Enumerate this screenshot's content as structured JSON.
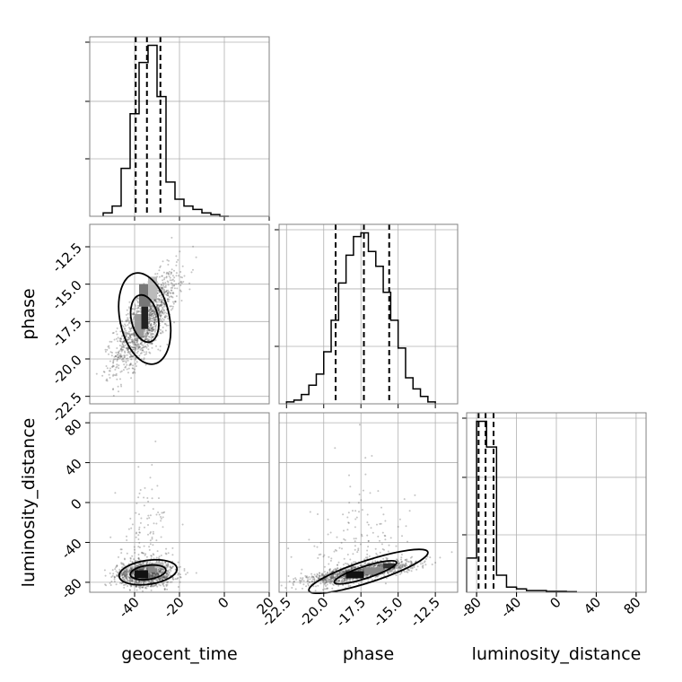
{
  "chart_data": {
    "type": "corner",
    "parameters": [
      {
        "name": "geocent_time",
        "label": "geocent_time",
        "range": [
          -60,
          20
        ],
        "ticks": [
          "-40",
          "-20",
          "0",
          "20"
        ],
        "tick_values": [
          -40,
          -20,
          0,
          20
        ]
      },
      {
        "name": "phase",
        "label": "phase",
        "range": [
          -23,
          -11
        ],
        "ticks": [
          "-22.5",
          "-20.0",
          "-17.5",
          "-15.0",
          "-12.5"
        ],
        "tick_values": [
          -22.5,
          -20.0,
          -17.5,
          -15.0,
          -12.5
        ]
      },
      {
        "name": "luminosity_distance",
        "label": "luminosity_distance",
        "range": [
          -90,
          90
        ],
        "ticks": [
          "-80",
          "-40",
          "0",
          "40",
          "80"
        ],
        "tick_values": [
          -80,
          -40,
          0,
          40,
          80
        ]
      }
    ],
    "histograms": [
      {
        "parameter": "geocent_time",
        "bin_edges": [
          -54,
          -50,
          -46,
          -42,
          -38,
          -34,
          -30,
          -26,
          -22,
          -18,
          -14,
          -10,
          -6,
          -2,
          2
        ],
        "counts": [
          2,
          6,
          28,
          60,
          90,
          100,
          70,
          20,
          10,
          6,
          4,
          2,
          1,
          0
        ],
        "quantiles": [
          -39.5,
          -34.5,
          -28.5
        ]
      },
      {
        "parameter": "phase",
        "bin_edges": [
          -22.5,
          -22.0,
          -21.5,
          -21.0,
          -20.5,
          -20.0,
          -19.5,
          -19.0,
          -18.5,
          -18.0,
          -17.5,
          -17.0,
          -16.5,
          -16.0,
          -15.5,
          -15.0,
          -14.5,
          -14.0,
          -13.5,
          -13.0,
          -12.5
        ],
        "counts": [
          1,
          2,
          5,
          10,
          16,
          28,
          45,
          65,
          80,
          90,
          92,
          82,
          74,
          60,
          45,
          30,
          14,
          8,
          4,
          1
        ],
        "quantiles": [
          -19.2,
          -17.3,
          -15.6
        ]
      },
      {
        "parameter": "luminosity_distance",
        "bin_edges": [
          -90,
          -80,
          -70,
          -60,
          -50,
          -40,
          -30,
          -20,
          -10,
          0,
          10,
          20
        ],
        "counts": [
          20,
          100,
          85,
          10,
          3,
          2,
          1,
          1,
          0.5,
          0.5,
          0.3
        ],
        "quantiles": [
          -78,
          -71,
          -63
        ]
      }
    ],
    "quantiles_shown": [
      0.16,
      0.5,
      0.84
    ],
    "scatter_2d": [
      {
        "x_param": "geocent_time",
        "y_param": "phase",
        "center": [
          -35,
          -17.5
        ],
        "contour_levels": 2
      },
      {
        "x_param": "geocent_time",
        "y_param": "luminosity_distance",
        "center": [
          -35,
          -72
        ],
        "contour_levels": 2
      },
      {
        "x_param": "phase",
        "y_param": "luminosity_distance",
        "center": [
          -17.5,
          -70
        ],
        "contour_levels": 2
      }
    ],
    "grid": true,
    "colors": {
      "line": "#000000",
      "points": "#555555",
      "grid": "#b0b0b0",
      "frame": "#808080"
    }
  }
}
